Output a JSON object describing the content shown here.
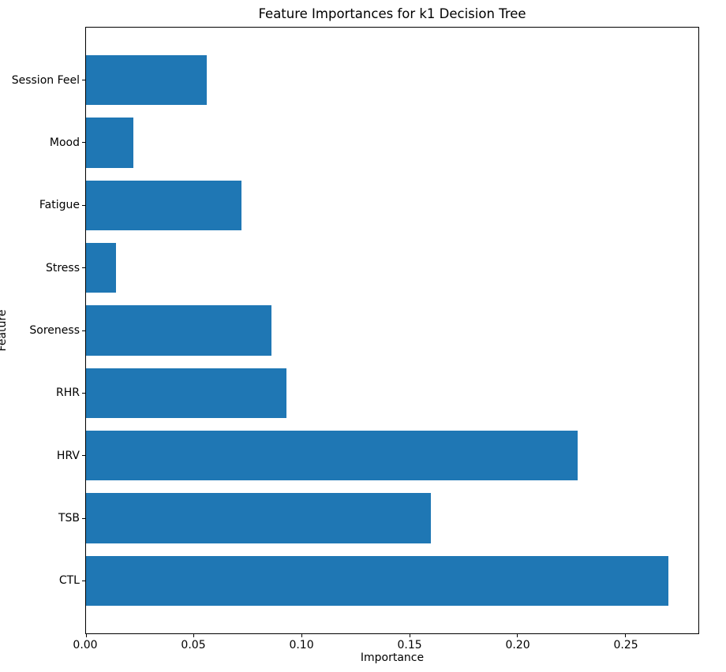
{
  "chart_data": {
    "type": "bar",
    "orientation": "horizontal",
    "title": "Feature Importances for k1 Decision Tree",
    "xlabel": "Importance",
    "ylabel": "Feature",
    "categories_top_to_bottom": [
      "Session Feel",
      "Mood",
      "Fatigue",
      "Stress",
      "Soreness",
      "RHR",
      "HRV",
      "TSB",
      "CTL"
    ],
    "values": [
      0.056,
      0.022,
      0.072,
      0.014,
      0.086,
      0.093,
      0.228,
      0.16,
      0.27
    ],
    "xticks": [
      0.0,
      0.05,
      0.1,
      0.15,
      0.2,
      0.25
    ],
    "xtick_labels": [
      "0.00",
      "0.05",
      "0.10",
      "0.15",
      "0.20",
      "0.25"
    ],
    "xlim": [
      0,
      0.2839
    ],
    "grid": false,
    "legend": null,
    "bar_color": "#1f77b4",
    "axis_color": "#000000",
    "background_color": "#ffffff"
  }
}
